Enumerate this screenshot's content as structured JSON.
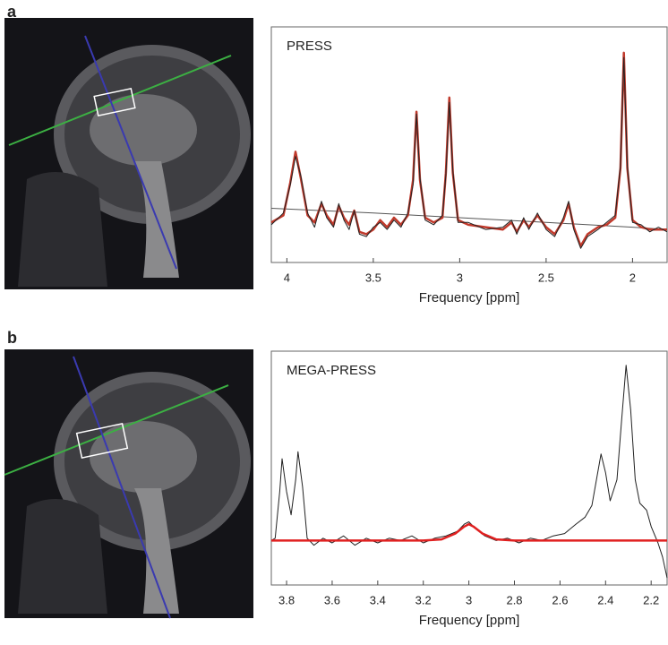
{
  "chart_data": [
    {
      "type": "line",
      "label": "a",
      "title": "PRESS",
      "xlabel": "Frequency [ppm]",
      "xlim": [
        4.09,
        1.8
      ],
      "xticks": [
        4,
        3.5,
        3,
        2.5,
        2
      ],
      "ylim": [
        0,
        100
      ],
      "series": [
        {
          "color": "#555555",
          "width": 1,
          "x": [
            4.09,
            3.5,
            3.0,
            2.5,
            2.0,
            1.8
          ],
          "values": [
            23,
            21,
            19,
            17,
            15,
            14
          ]
        },
        {
          "color": "#c0392b",
          "width": 2.5,
          "x": [
            4.09,
            4.02,
            3.98,
            3.95,
            3.92,
            3.88,
            3.84,
            3.8,
            3.77,
            3.73,
            3.7,
            3.67,
            3.64,
            3.61,
            3.58,
            3.54,
            3.5,
            3.46,
            3.42,
            3.38,
            3.34,
            3.3,
            3.27,
            3.25,
            3.23,
            3.2,
            3.15,
            3.1,
            3.08,
            3.06,
            3.04,
            3.01,
            2.95,
            2.85,
            2.75,
            2.7,
            2.67,
            2.63,
            2.6,
            2.55,
            2.5,
            2.45,
            2.4,
            2.37,
            2.34,
            2.3,
            2.26,
            2.2,
            2.15,
            2.1,
            2.07,
            2.05,
            2.03,
            2.0,
            1.95,
            1.9,
            1.85,
            1.8
          ],
          "values": [
            17,
            20,
            34,
            47,
            36,
            20,
            17,
            25,
            20,
            16,
            24,
            19,
            16,
            22,
            13,
            12,
            14,
            18,
            15,
            19,
            16,
            20,
            35,
            64,
            35,
            19,
            17,
            19,
            38,
            70,
            38,
            18,
            16,
            15,
            14,
            17,
            13,
            18,
            15,
            20,
            15,
            12,
            18,
            25,
            15,
            7,
            12,
            15,
            16,
            19,
            40,
            89,
            40,
            18,
            15,
            14,
            14,
            14
          ]
        },
        {
          "color": "#222222",
          "width": 1,
          "x": [
            4.09,
            4.02,
            3.98,
            3.95,
            3.92,
            3.88,
            3.84,
            3.8,
            3.77,
            3.73,
            3.7,
            3.67,
            3.64,
            3.61,
            3.58,
            3.54,
            3.5,
            3.46,
            3.42,
            3.38,
            3.34,
            3.3,
            3.27,
            3.25,
            3.23,
            3.2,
            3.15,
            3.1,
            3.08,
            3.06,
            3.04,
            3.01,
            2.95,
            2.85,
            2.75,
            2.7,
            2.67,
            2.63,
            2.6,
            2.55,
            2.5,
            2.45,
            2.4,
            2.37,
            2.34,
            2.3,
            2.26,
            2.2,
            2.15,
            2.1,
            2.07,
            2.05,
            2.03,
            2.0,
            1.95,
            1.9,
            1.85,
            1.8
          ],
          "values": [
            16,
            21,
            33,
            45,
            37,
            21,
            15,
            26,
            19,
            15,
            25,
            18,
            14,
            22,
            12,
            11,
            15,
            17,
            14,
            18,
            15,
            21,
            33,
            63,
            36,
            18,
            16,
            20,
            37,
            68,
            39,
            17,
            17,
            14,
            15,
            18,
            12,
            19,
            14,
            21,
            14,
            11,
            19,
            26,
            14,
            6,
            11,
            14,
            17,
            20,
            41,
            87,
            41,
            17,
            16,
            13,
            15,
            13
          ]
        }
      ]
    },
    {
      "type": "line",
      "label": "b",
      "title": "MEGA-PRESS",
      "xlabel": "Frequency [ppm]",
      "xlim": [
        3.867,
        2.13
      ],
      "xticks": [
        3.8,
        3.6,
        3.4,
        3.2,
        3,
        2.8,
        2.6,
        2.4,
        2.2
      ],
      "ylim": [
        0,
        100
      ],
      "series": [
        {
          "color": "#222222",
          "width": 1,
          "x": [
            3.867,
            3.85,
            3.83,
            3.82,
            3.8,
            3.78,
            3.76,
            3.75,
            3.73,
            3.71,
            3.68,
            3.64,
            3.6,
            3.55,
            3.5,
            3.45,
            3.4,
            3.35,
            3.3,
            3.25,
            3.2,
            3.15,
            3.1,
            3.05,
            3.02,
            3.0,
            2.97,
            2.93,
            2.88,
            2.83,
            2.78,
            2.73,
            2.68,
            2.63,
            2.58,
            2.53,
            2.49,
            2.46,
            2.44,
            2.42,
            2.4,
            2.38,
            2.35,
            2.33,
            2.31,
            2.29,
            2.27,
            2.25,
            2.22,
            2.2,
            2.17,
            2.15,
            2.13
          ],
          "values": [
            19,
            20,
            40,
            54,
            40,
            30,
            45,
            57,
            42,
            20,
            17,
            20,
            18,
            21,
            17,
            20,
            18,
            20,
            19,
            21,
            18,
            20,
            21,
            23,
            26,
            27,
            24,
            21,
            19,
            20,
            18,
            20,
            19,
            21,
            22,
            26,
            29,
            34,
            45,
            56,
            48,
            36,
            45,
            70,
            94,
            75,
            45,
            35,
            32,
            25,
            18,
            12,
            3
          ]
        },
        {
          "color": "#e02020",
          "width": 2.5,
          "x": [
            3.867,
            3.2,
            3.12,
            3.06,
            3.02,
            3.0,
            2.98,
            2.94,
            2.88,
            2.8,
            2.13
          ],
          "values": [
            19,
            19,
            19.5,
            22,
            25,
            26,
            25,
            22,
            19.5,
            19,
            19
          ]
        }
      ]
    }
  ]
}
